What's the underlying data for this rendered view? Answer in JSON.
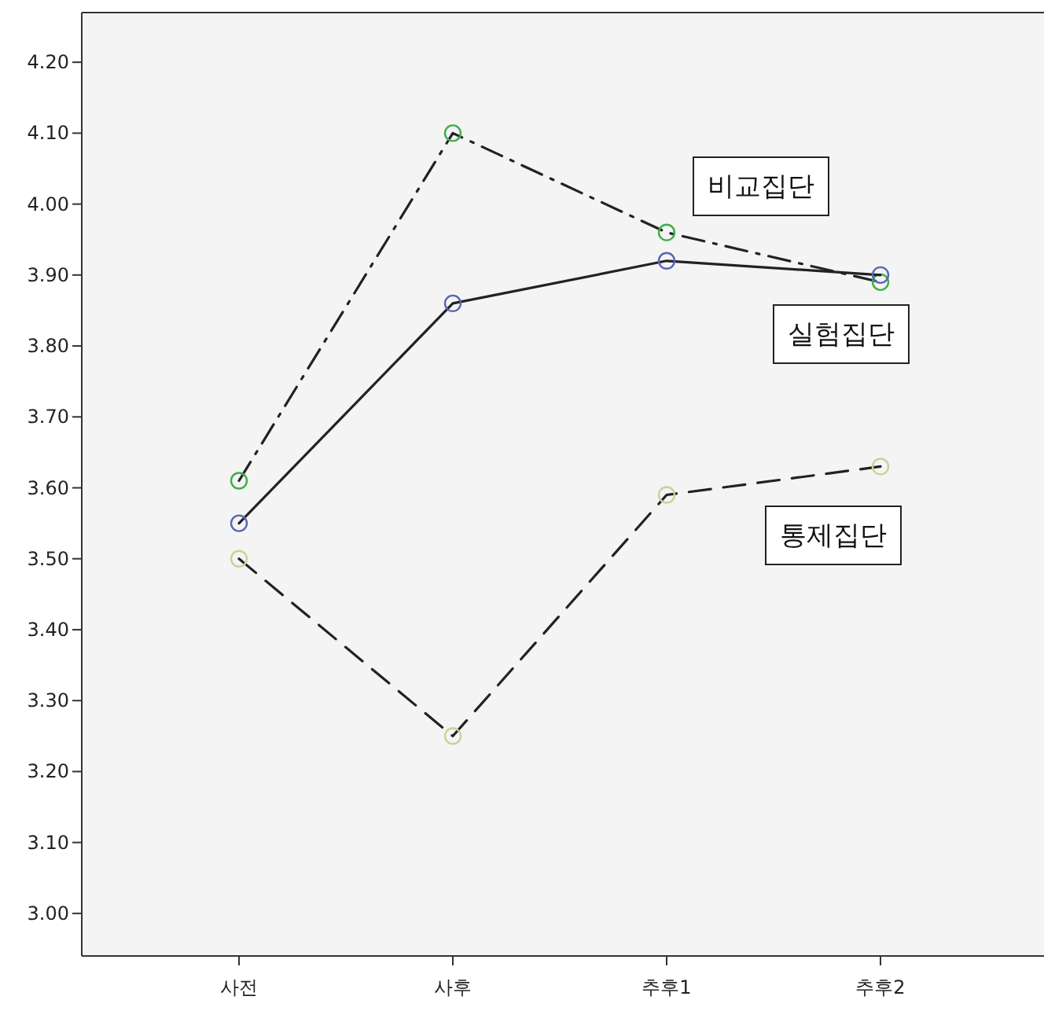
{
  "chart_data": {
    "type": "line",
    "categories": [
      "사전",
      "사후",
      "추후1",
      "추후2"
    ],
    "ylim": [
      2.94,
      4.27
    ],
    "yticks": [
      {
        "value": 3.0,
        "label": "3.00"
      },
      {
        "value": 3.1,
        "label": "3.10"
      },
      {
        "value": 3.2,
        "label": "3.20"
      },
      {
        "value": 3.3,
        "label": "3.30"
      },
      {
        "value": 3.4,
        "label": "3.40"
      },
      {
        "value": 3.5,
        "label": "3.50"
      },
      {
        "value": 3.6,
        "label": "3.60"
      },
      {
        "value": 3.7,
        "label": "3.70"
      },
      {
        "value": 3.8,
        "label": "3.80"
      },
      {
        "value": 3.9,
        "label": "3.90"
      },
      {
        "value": 4.0,
        "label": "4.00"
      },
      {
        "value": 4.1,
        "label": "4.10"
      },
      {
        "value": 4.2,
        "label": "4.20"
      }
    ],
    "grid": false,
    "legend": false,
    "marker": "circle",
    "series": [
      {
        "name": "비교집단",
        "color": "#3fae4a",
        "line_style": "dashdot",
        "values": [
          3.61,
          4.1,
          3.96,
          3.89
        ]
      },
      {
        "name": "실험집단",
        "color": "#5867b8",
        "line_style": "solid",
        "values": [
          3.55,
          3.86,
          3.92,
          3.9
        ]
      },
      {
        "name": "통제집단",
        "color": "#cfcf98",
        "line_style": "dashed",
        "values": [
          3.5,
          3.25,
          3.59,
          3.63
        ]
      }
    ]
  }
}
